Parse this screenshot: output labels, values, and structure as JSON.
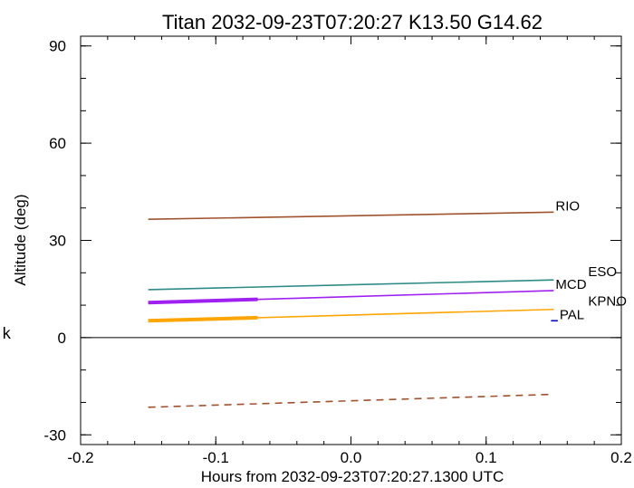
{
  "chart_data": {
    "type": "line",
    "title": "Titan 2032-09-23T07:20:27  K13.50  G14.62",
    "xlabel": "Hours from 2032-09-23T07:20:27.1300 UTC",
    "ylabel": "Altitude (deg)",
    "side_label": "k",
    "xlim": [
      -0.2,
      0.2
    ],
    "ylim": [
      -33,
      93
    ],
    "xticks": [
      -0.2,
      -0.1,
      0.0,
      0.1,
      0.2
    ],
    "xtick_labels": [
      "-0.2",
      "-0.1",
      "0.0",
      "0.1",
      "0.2"
    ],
    "yticks": [
      -30,
      0,
      30,
      60,
      90
    ],
    "ytick_labels": [
      "-30",
      "0",
      "30",
      "60",
      "90"
    ],
    "grid": false,
    "zero_line": true,
    "series": [
      {
        "name": "RIO",
        "color": "#a0522d",
        "x": [
          -0.15,
          0.15
        ],
        "y": [
          36.5,
          38.7
        ],
        "thick_until": null,
        "label_pos": "end"
      },
      {
        "name": "ESO",
        "color": "#2e8b87",
        "x": [
          -0.15,
          0.15
        ],
        "y": [
          14.8,
          17.8
        ],
        "thick_until": null,
        "label_pos": "offset-up"
      },
      {
        "name": "MCD",
        "color": "#a020f0",
        "x": [
          -0.15,
          0.15
        ],
        "y": [
          10.8,
          14.5
        ],
        "thick_until": -0.069,
        "label_pos": "end"
      },
      {
        "name": "KPNO",
        "color": "#ffa500",
        "x": [
          -0.15,
          0.15
        ],
        "y": [
          5.2,
          8.7
        ],
        "thick_until": -0.069,
        "label_pos": "offset-up"
      },
      {
        "name": "PAL",
        "color": "#0000cd",
        "x": [
          0.148,
          0.153
        ],
        "y": [
          5.2,
          5.2
        ],
        "thick_until": null,
        "label_pos": "end"
      },
      {
        "name": "",
        "color": "#a0522d",
        "x": [
          -0.15,
          0.15
        ],
        "y": [
          -21.5,
          -17.5
        ],
        "dashed": true,
        "thick_until": null,
        "label_pos": "none"
      }
    ]
  }
}
